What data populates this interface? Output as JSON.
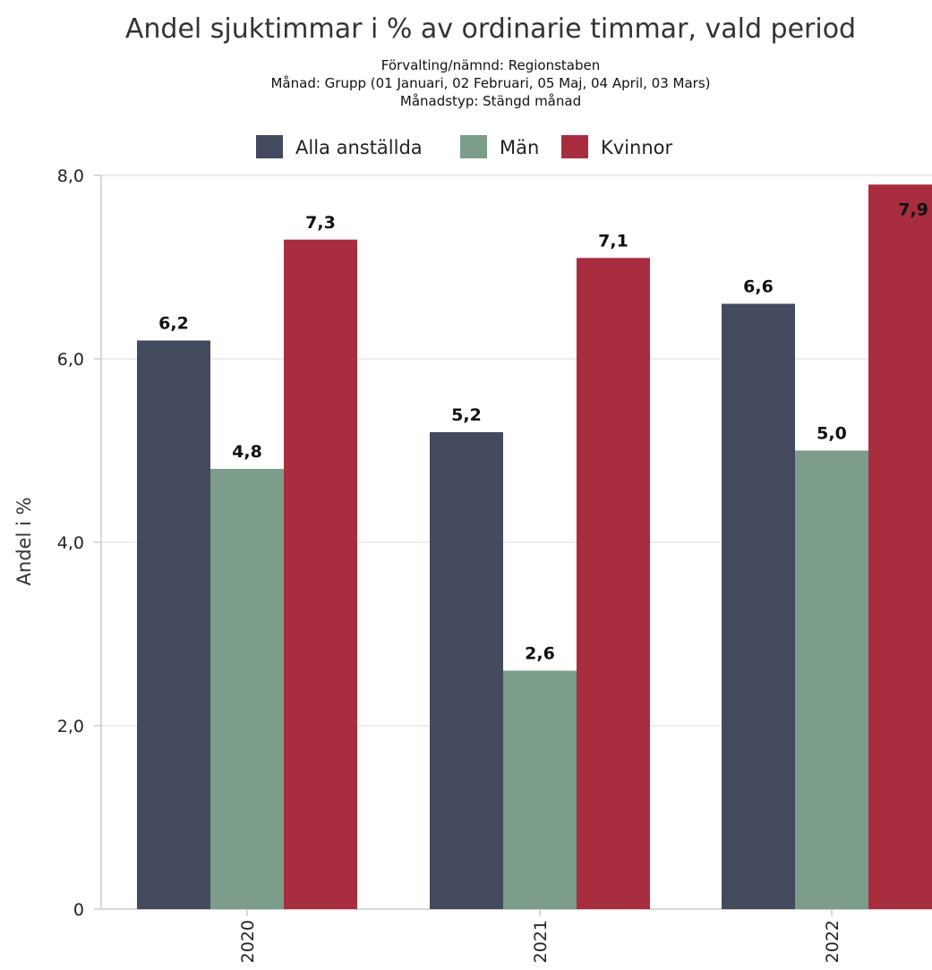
{
  "chart_data": {
    "type": "bar",
    "title": "Andel sjuktimmar i % av ordinarie timmar, vald period",
    "subtitle_lines": [
      "Förvalting/nämnd: Regionstaben",
      "Månad: Grupp (01 Januari, 02 Februari, 05 Maj, 04 April, 03 Mars)",
      "Månadstyp: Stängd månad"
    ],
    "categories": [
      "2020",
      "2021",
      "2022"
    ],
    "series": [
      {
        "name": "Alla anställda",
        "color": "#444a5e",
        "values": [
          6.2,
          5.2,
          6.6
        ],
        "labels": [
          "6,2",
          "5,2",
          "6,6"
        ]
      },
      {
        "name": "Män",
        "color": "#7b9d8a",
        "values": [
          4.8,
          2.6,
          5.0
        ],
        "labels": [
          "4,8",
          "2,6",
          "5,0"
        ]
      },
      {
        "name": "Kvinnor",
        "color": "#a82e3f",
        "values": [
          7.3,
          7.1,
          7.9
        ],
        "labels": [
          "7,3",
          "7,1",
          "7,9"
        ]
      }
    ],
    "xlabel": "",
    "ylabel": "Andel i %",
    "ylim": [
      0,
      8
    ],
    "yticks": [
      {
        "value": 0,
        "label": "0"
      },
      {
        "value": 2,
        "label": "2,0"
      },
      {
        "value": 4,
        "label": "4,0"
      },
      {
        "value": 6,
        "label": "6,0"
      },
      {
        "value": 8,
        "label": "8,0"
      }
    ],
    "grid": true,
    "legend_position": "top-center"
  }
}
